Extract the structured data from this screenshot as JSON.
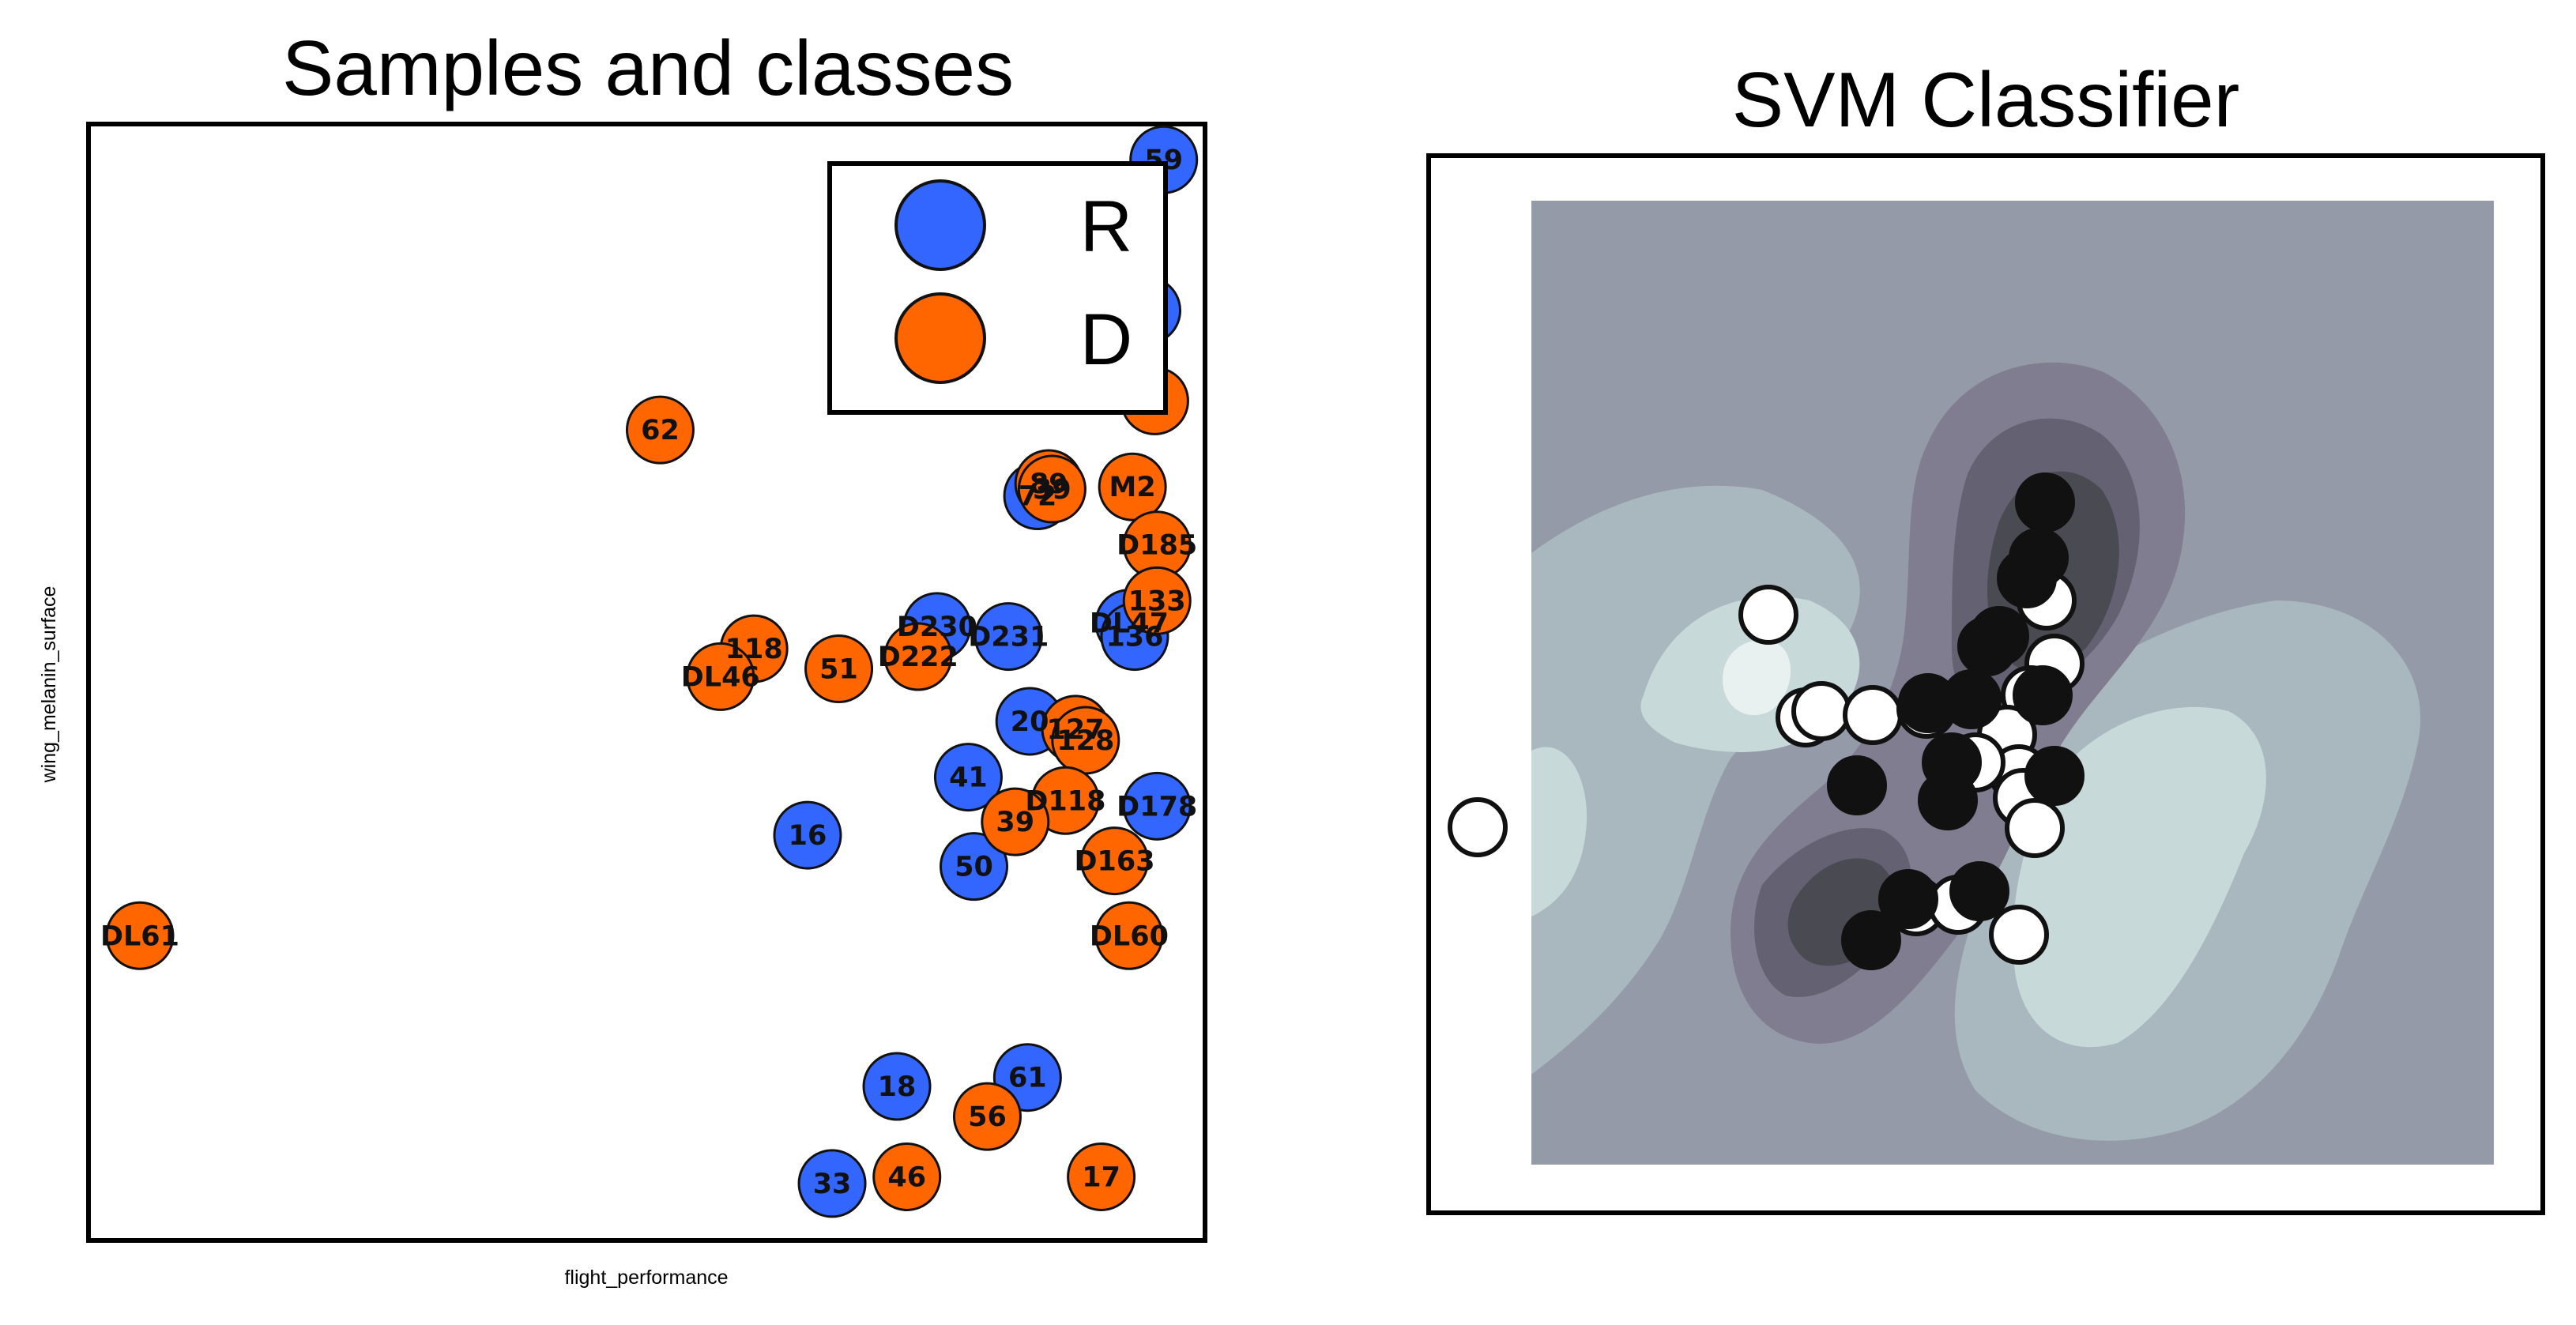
{
  "chart_data": [
    {
      "type": "scatter",
      "title": "Samples and classes",
      "xlabel": "flight_performance",
      "ylabel": "wing_melanin_surface",
      "xlim": [
        0,
        100
      ],
      "ylim": [
        0,
        100
      ],
      "grid": false,
      "legend": {
        "placement": "top-right",
        "entries": [
          {
            "label": "R",
            "color": "#3366ff"
          },
          {
            "label": "D",
            "color": "#ff6600"
          }
        ]
      },
      "series": [
        {
          "name": "R",
          "color": "#3366ff",
          "points": [
            {
              "label": "59",
              "x": 96.3,
              "y": 96.8
            },
            {
              "label": "",
              "x": 94.8,
              "y": 83.3
            },
            {
              "label": "72",
              "x": 85.0,
              "y": 66.7
            },
            {
              "label": "D230",
              "x": 76.0,
              "y": 55.0
            },
            {
              "label": "D231",
              "x": 82.4,
              "y": 54.1
            },
            {
              "label": "DL47",
              "x": 93.2,
              "y": 55.3
            },
            {
              "label": "136",
              "x": 93.7,
              "y": 54.1
            },
            {
              "label": "20",
              "x": 84.3,
              "y": 46.5
            },
            {
              "label": "41",
              "x": 78.8,
              "y": 41.5
            },
            {
              "label": "D178",
              "x": 95.7,
              "y": 38.9
            },
            {
              "label": "16",
              "x": 64.4,
              "y": 36.3
            },
            {
              "label": "50",
              "x": 79.3,
              "y": 33.5
            },
            {
              "label": "61",
              "x": 84.1,
              "y": 14.6
            },
            {
              "label": "18",
              "x": 72.4,
              "y": 13.8
            },
            {
              "label": "33",
              "x": 66.6,
              "y": 5.1
            }
          ]
        },
        {
          "name": "D",
          "color": "#ff6600",
          "points": [
            {
              "label": "9",
              "x": 95.5,
              "y": 75.2
            },
            {
              "label": "62",
              "x": 51.2,
              "y": 72.6
            },
            {
              "label": "M2",
              "x": 93.5,
              "y": 67.5
            },
            {
              "label": "89",
              "x": 86.0,
              "y": 67.8
            },
            {
              "label": "39",
              "x": 86.3,
              "y": 67.3
            },
            {
              "label": "D185",
              "x": 95.7,
              "y": 62.3
            },
            {
              "label": "133",
              "x": 95.7,
              "y": 57.3
            },
            {
              "label": "118",
              "x": 59.6,
              "y": 53.0
            },
            {
              "label": "DL46",
              "x": 56.6,
              "y": 50.5
            },
            {
              "label": "51",
              "x": 67.2,
              "y": 51.2
            },
            {
              "label": "D222",
              "x": 74.3,
              "y": 52.3
            },
            {
              "label": "127",
              "x": 88.4,
              "y": 45.8
            },
            {
              "label": "128",
              "x": 89.3,
              "y": 44.8
            },
            {
              "label": "D118",
              "x": 87.5,
              "y": 39.4
            },
            {
              "label": "39",
              "x": 83.0,
              "y": 37.5
            },
            {
              "label": "D163",
              "x": 91.9,
              "y": 34.0
            },
            {
              "label": "DL60",
              "x": 93.2,
              "y": 27.3
            },
            {
              "label": "DL61",
              "x": 4.6,
              "y": 27.3
            },
            {
              "label": "56",
              "x": 80.5,
              "y": 11.1
            },
            {
              "label": "46",
              "x": 73.3,
              "y": 5.7
            },
            {
              "label": "17",
              "x": 90.7,
              "y": 5.7
            }
          ]
        }
      ]
    },
    {
      "type": "heatmap",
      "title": "SVM Classifier",
      "grid": false,
      "background_levels": [
        "#e8f0f0",
        "#c8d9da",
        "#a9b8be",
        "#949aa8",
        "#807d90",
        "#646172",
        "#4a4a52"
      ],
      "classes": [
        {
          "name": "class-black",
          "color": "#111111"
        },
        {
          "name": "class-white",
          "color": "#ffffff"
        }
      ]
    }
  ]
}
